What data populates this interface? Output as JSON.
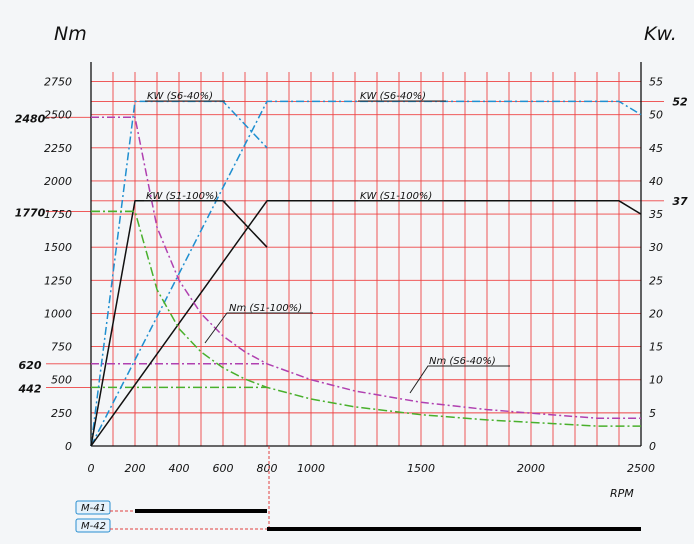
{
  "chart_data": {
    "type": "line",
    "title": "",
    "ylabel_left": "Nm",
    "ylabel_right": "Kw.",
    "xlabel": "RPM",
    "xlim": [
      0,
      2500
    ],
    "ylim_left": [
      0,
      2875
    ],
    "ylim_right": [
      0,
      57.5
    ],
    "grid": true,
    "x_ticks": [
      "0",
      "200",
      "400",
      "600",
      "800",
      "1000",
      "1500",
      "2000",
      "2500"
    ],
    "y_left_ticks": [
      "0",
      "250",
      "500",
      "750",
      "1000",
      "1250",
      "1500",
      "1750",
      "2000",
      "2250",
      "2500",
      "2750"
    ],
    "y_right_ticks": [
      "0",
      "5",
      "10",
      "15",
      "20",
      "25",
      "30",
      "35",
      "40",
      "45",
      "50",
      "55"
    ],
    "marked_left": [
      "2480",
      "1770",
      "620",
      "442"
    ],
    "marked_right": [
      "52",
      "37"
    ],
    "annotations": [
      "KW (S6-40%)",
      "KW (S6-40%)",
      "KW (S1-100%)",
      "KW (S1-100%)",
      "Nm (S1-100%)",
      "Nm (S6-40%)"
    ],
    "motors": [
      {
        "name": "M-41",
        "rpm_range": [
          200,
          800
        ]
      },
      {
        "name": "M-42",
        "rpm_range": [
          800,
          2500
        ]
      }
    ],
    "series": [
      {
        "color": "#1f8fd0",
        "axis": "right",
        "points": [
          [
            0,
            0
          ],
          [
            200,
            52
          ],
          [
            600,
            52
          ],
          [
            800,
            45
          ]
        ]
      },
      {
        "color": "#1f8fd0",
        "axis": "right",
        "points": [
          [
            0,
            0
          ],
          [
            800,
            52
          ],
          [
            2400,
            52
          ],
          [
            2500,
            50
          ]
        ]
      },
      {
        "color": "#111111",
        "axis": "right",
        "points": [
          [
            0,
            0
          ],
          [
            200,
            37
          ],
          [
            600,
            37
          ],
          [
            800,
            30
          ]
        ]
      },
      {
        "color": "#111111",
        "axis": "right",
        "points": [
          [
            0,
            0
          ],
          [
            800,
            37
          ],
          [
            2400,
            37
          ],
          [
            2500,
            35
          ]
        ]
      },
      {
        "color": "#b040b0",
        "axis": "left",
        "points": [
          [
            0,
            2480
          ],
          [
            200,
            2480
          ],
          [
            300,
            1650
          ],
          [
            400,
            1250
          ],
          [
            500,
            1000
          ],
          [
            600,
            830
          ],
          [
            700,
            710
          ],
          [
            800,
            620
          ],
          [
            1000,
            500
          ],
          [
            1200,
            415
          ],
          [
            1500,
            330
          ],
          [
            1800,
            275
          ],
          [
            2100,
            235
          ],
          [
            2300,
            210
          ],
          [
            2500,
            210
          ]
        ]
      },
      {
        "color": "#49b02c",
        "axis": "left",
        "points": [
          [
            0,
            1770
          ],
          [
            200,
            1770
          ],
          [
            300,
            1180
          ],
          [
            400,
            885
          ],
          [
            500,
            710
          ],
          [
            600,
            590
          ],
          [
            700,
            505
          ],
          [
            800,
            442
          ],
          [
            1000,
            355
          ],
          [
            1200,
            295
          ],
          [
            1500,
            236
          ],
          [
            1800,
            197
          ],
          [
            2100,
            169
          ],
          [
            2300,
            150
          ],
          [
            2500,
            150
          ]
        ]
      }
    ],
    "reference_lines": [
      {
        "color": "#b040b0",
        "axis": "left",
        "value": 2480,
        "points": [
          [
            0,
            2480
          ],
          [
            200,
            2480
          ]
        ]
      },
      {
        "color": "#49b02c",
        "axis": "left",
        "value": 1770,
        "points": [
          [
            0,
            1770
          ],
          [
            200,
            1770
          ]
        ]
      },
      {
        "color": "#b040b0",
        "axis": "left",
        "value": 620,
        "points": [
          [
            0,
            620
          ],
          [
            800,
            620
          ]
        ]
      },
      {
        "color": "#49b02c",
        "axis": "left",
        "value": 442,
        "points": [
          [
            0,
            442
          ],
          [
            800,
            442
          ]
        ]
      }
    ]
  }
}
